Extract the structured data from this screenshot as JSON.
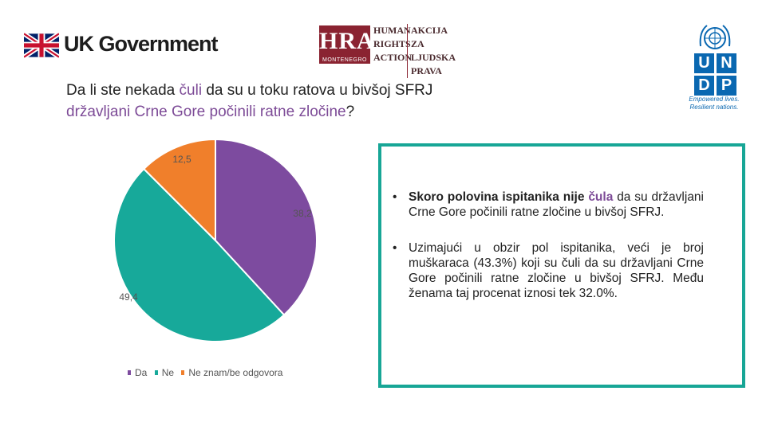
{
  "header": {
    "uk_logo_text": "UK Government",
    "hra": {
      "mark": "HRA",
      "sub": "MONTENEGRO",
      "en_lines": [
        "HUMAN",
        "RIGHTS",
        "ACTION"
      ],
      "me_lines": [
        "AKCIJA ZA",
        "LJUDSKA",
        "PRAVA"
      ]
    },
    "undp": {
      "letters": [
        "U",
        "N",
        "D",
        "P"
      ],
      "tagline_1": "Empowered lives.",
      "tagline_2": "Resilient nations."
    }
  },
  "question": {
    "part1": "Da li ste nekada ",
    "hl1": "čuli",
    "part2": " da su u toku ratova u bivšoj SFRJ",
    "hl2": "državljani Crne Gore počinili ratne zločine",
    "part3": "?"
  },
  "chart_data": {
    "type": "pie",
    "categories": [
      "Da",
      "Ne",
      "Ne znam/be odgovora"
    ],
    "values": [
      38.2,
      49.4,
      12.5
    ],
    "data_labels": [
      "38,2",
      "49,4",
      "12,5"
    ],
    "colors": [
      "#7d4b9f",
      "#17a99a",
      "#f07f2b"
    ],
    "legend_position": "bottom"
  },
  "summary": {
    "b1_bold_1": "Skoro polovina ispitanika nije ",
    "b1_bold_hl": "čula",
    "b1_rest": " da su državljani Crne Gore počinili ratne zločine u bivšoj SFRJ.",
    "b2_text": "Uzimajući u obzir pol ispitanika, veći je broj muškaraca (43.3%) koji su čuli da su državljani Crne Gore počinili ratne zločine u bivšoj SFRJ. Među ženama taj procenat iznosi tek 32.0%.",
    "bullet_char": "•",
    "accent_color": "#17a696"
  }
}
